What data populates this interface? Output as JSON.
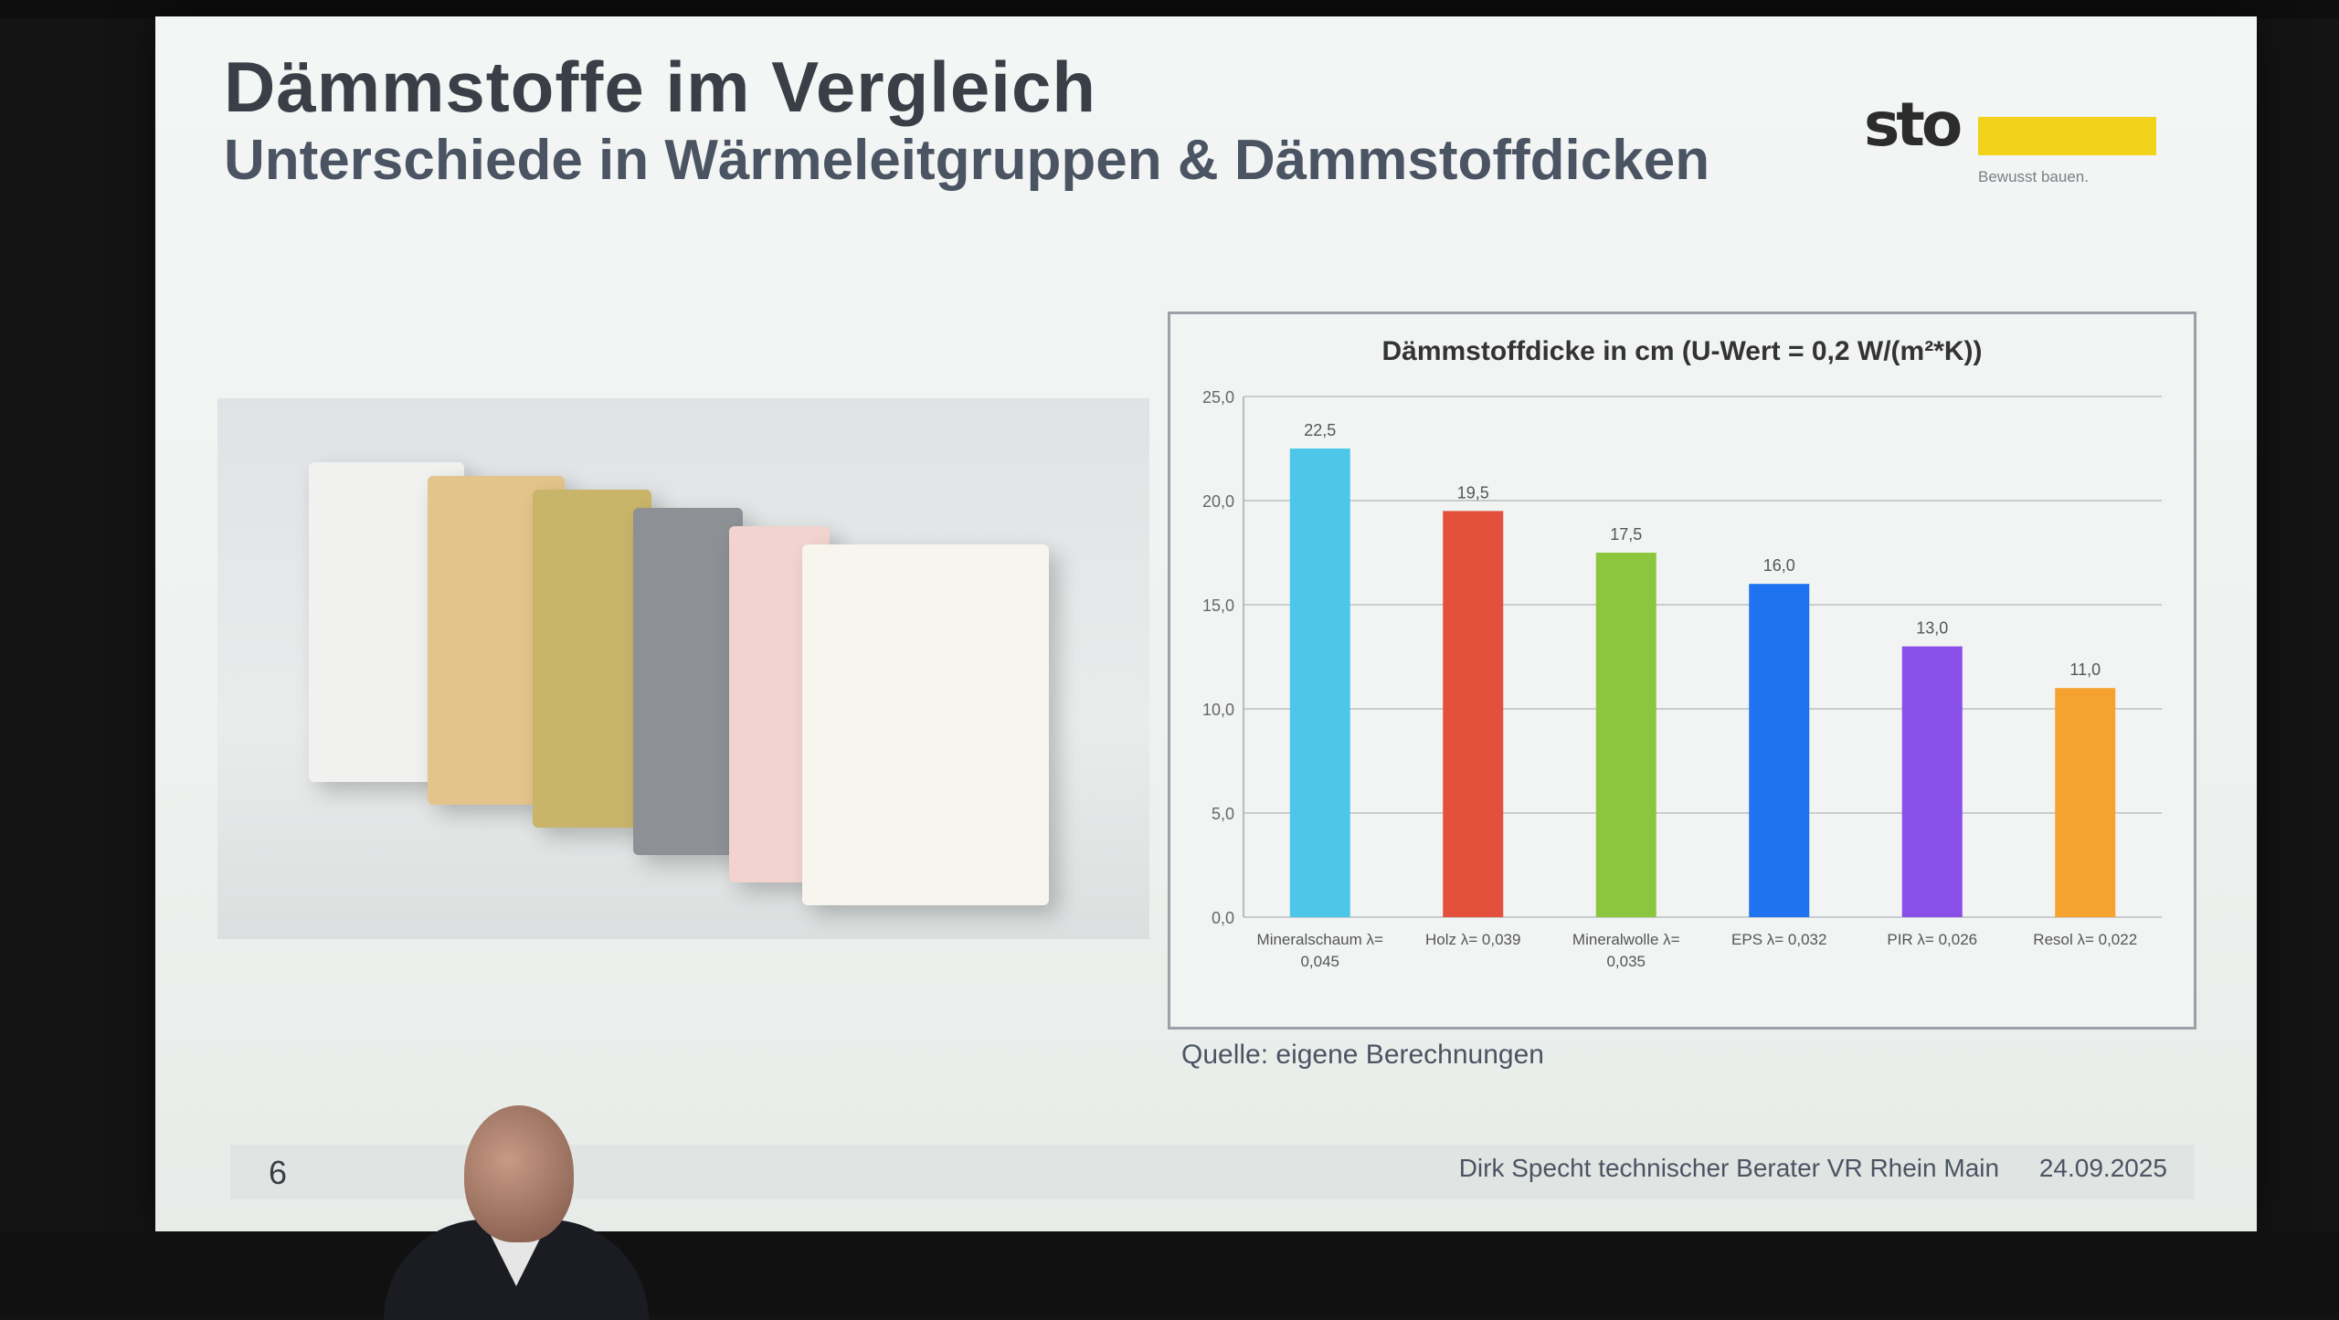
{
  "slide": {
    "title": "Dämmstoffe im Vergleich",
    "subtitle": "Unterschiede in Wärmeleitgruppen & Dämmstoffdicken",
    "logo": {
      "word": "sto",
      "tagline": "Bewusst bauen.",
      "accent_color": "#f2d21a"
    },
    "source": "Quelle: eigene Berechnungen",
    "footer": {
      "page_number": "6",
      "presenter": "Dirk Specht technischer Berater VR Rhein Main",
      "date": "24.09.2025"
    }
  },
  "photo_slabs": [
    {
      "name": "mineral-foam",
      "color": "#f1f1ef"
    },
    {
      "name": "wood-fiber",
      "color": "#e3c48a"
    },
    {
      "name": "mineral-wool",
      "color": "#c8b56a"
    },
    {
      "name": "eps-grey",
      "color": "#8d9094"
    },
    {
      "name": "pir-pink",
      "color": "#f2d3cf"
    },
    {
      "name": "resol-white",
      "color": "#f7f5ee"
    }
  ],
  "chart_data": {
    "type": "bar",
    "title": "Dämmstoffdicke in cm (U-Wert = 0,2 W/(m²*K))",
    "categories": [
      [
        "Mineralschaum λ=",
        "0,045"
      ],
      [
        "Holz λ= 0,039"
      ],
      [
        "Mineralwolle λ=",
        "0,035"
      ],
      [
        "EPS λ= 0,032"
      ],
      [
        "PIR λ= 0,026"
      ],
      [
        "Resol λ= 0,022"
      ]
    ],
    "values": [
      22.5,
      19.5,
      17.5,
      16.0,
      13.0,
      11.0
    ],
    "value_labels": [
      "22,5",
      "19,5",
      "17,5",
      "16,0",
      "13,0",
      "11,0"
    ],
    "colors": [
      "#4cc7ea",
      "#e3503c",
      "#8cc63e",
      "#1f73f0",
      "#8a4fe8",
      "#f5a22e"
    ],
    "ylim": [
      0,
      25
    ],
    "yticks": [
      "0,0",
      "5,0",
      "10,0",
      "15,0",
      "20,0",
      "25,0"
    ],
    "grid": true
  }
}
